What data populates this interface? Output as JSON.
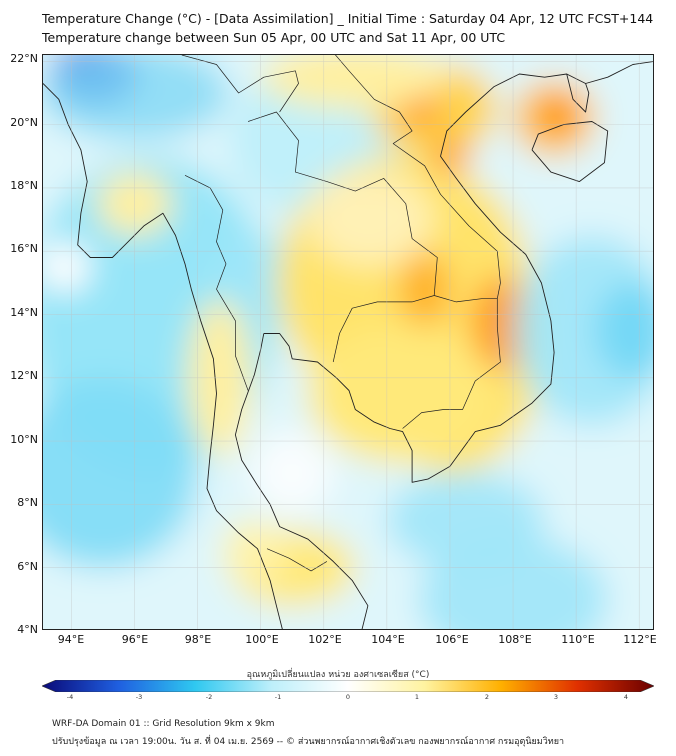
{
  "header": {
    "title_line1": "Temperature Change (°C) - [Data Assimilation] _ Initial Time : Saturday 04 Apr, 12 UTC FCST+144",
    "title_line2": "Temperature change between Sun 05 Apr, 00 UTC and Sat 11 Apr, 00 UTC"
  },
  "map": {
    "lat_range": [
      4,
      22.2
    ],
    "lon_range": [
      93.1,
      112.5
    ],
    "lat_ticks": [
      "22°N",
      "20°N",
      "18°N",
      "16°N",
      "14°N",
      "12°N",
      "10°N",
      "8°N",
      "6°N",
      "4°N"
    ],
    "lon_ticks": [
      "94°E",
      "96°E",
      "98°E",
      "100°E",
      "102°E",
      "104°E",
      "106°E",
      "108°E",
      "110°E",
      "112°E"
    ],
    "gridlines": true
  },
  "colorbar": {
    "label": "อุณหภูมิเปลี่ยนแปลง หน่วย องศาเซลเซียส (°C)",
    "min": -4,
    "max": 4,
    "ticks": [
      "-4",
      "-3",
      "-2",
      "-1",
      "0",
      "1",
      "2",
      "3",
      "4"
    ],
    "colors": [
      "#0a0a78",
      "#1f5fe0",
      "#2fc8f0",
      "#bdeffa",
      "#ffffff",
      "#fff3a0",
      "#ffb000",
      "#e03000",
      "#6a0000"
    ]
  },
  "footer": {
    "line1": "WRF-DA Domain 01 :: Grid Resolution 9km x 9km",
    "line2": "ปรับปรุงข้อมูล ณ เวลา 19:00น. วัน ส. ที่ 04 เม.ย. 2569 -- © ส่วนพยากรณ์อากาศเชิงตัวเลข กองพยากรณ์อากาศ กรมอุตุนิยมวิทยา"
  }
}
